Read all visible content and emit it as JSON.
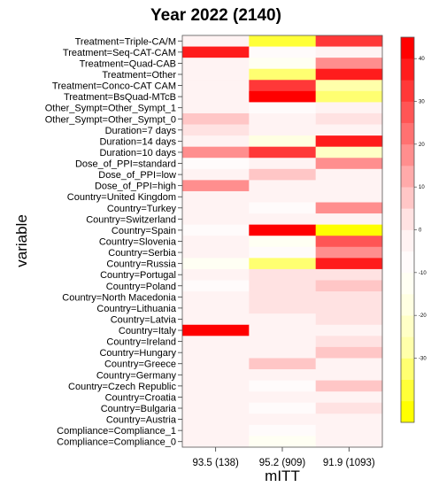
{
  "chart_data": {
    "type": "heatmap",
    "title": "Year 2022 (2140)",
    "xlabel": "mITT",
    "ylabel": "variable",
    "columns": [
      "93.5 (138)",
      "95.2 (909)",
      "91.9 (1093)"
    ],
    "rows": [
      "Treatment=Triple-CA/M",
      "Treatment=Seq-CAT-CAM",
      "Treatment=Quad-CAB",
      "Treatment=Other",
      "Treatment=Conco-CAT CAM",
      "Treatment=BsQuad-MTcB",
      "Other_Sympt=Other_Sympt_1",
      "Other_Sympt=Other_Sympt_0",
      "Duration=7 days",
      "Duration=14 days",
      "Duration=10 days",
      "Dose_of_PPI=standard",
      "Dose_of_PPI=low",
      "Dose_of_PPI=high",
      "Country=United Kingdom",
      "Country=Turkey",
      "Country=Switzerland",
      "Country=Spain",
      "Country=Slovenia",
      "Country=Serbia",
      "Country=Russia",
      "Country=Portugal",
      "Country=Poland",
      "Country=North Macedonia",
      "Country=Lithuania",
      "Country=Latvia",
      "Country=Italy",
      "Country=Ireland",
      "Country=Hungary",
      "Country=Greece",
      "Country=Germany",
      "Country=Czech Republic",
      "Country=Croatia",
      "Country=Bulgaria",
      "Country=Austria",
      "Compliance=Compliance_1",
      "Compliance=Compliance_0"
    ],
    "values": [
      [
        -3,
        -40,
        30
      ],
      [
        35,
        -8,
        -4
      ],
      [
        -3,
        -12,
        15
      ],
      [
        -3,
        -35,
        35
      ],
      [
        -3,
        30,
        -30
      ],
      [
        -3,
        40,
        -35
      ],
      [
        -3,
        -6,
        -2
      ],
      [
        5,
        -5,
        3
      ],
      [
        0,
        -3,
        -2
      ],
      [
        -5,
        -20,
        35
      ],
      [
        15,
        30,
        -25
      ],
      [
        -10,
        -4,
        15
      ],
      [
        -3,
        5,
        -3
      ],
      [
        15,
        -2,
        -3
      ],
      [
        -3,
        -3,
        -5
      ],
      [
        -5,
        -8,
        15
      ],
      [
        -3,
        -2,
        -3
      ],
      [
        -10,
        45,
        -45
      ],
      [
        -5,
        -15,
        25
      ],
      [
        -5,
        -10,
        15
      ],
      [
        -15,
        -35,
        35
      ],
      [
        -3,
        3,
        3
      ],
      [
        -8,
        3,
        5
      ],
      [
        -3,
        3,
        4
      ],
      [
        -3,
        3,
        4
      ],
      [
        -3,
        -3,
        4
      ],
      [
        40,
        -3,
        -3
      ],
      [
        -3,
        -3,
        4
      ],
      [
        -3,
        -3,
        5
      ],
      [
        -3,
        8,
        -4
      ],
      [
        -3,
        -5,
        -3
      ],
      [
        -3,
        -6,
        5
      ],
      [
        -3,
        -5,
        -3
      ],
      [
        -3,
        -8,
        3
      ],
      [
        -3,
        -3,
        -3
      ],
      [
        -3,
        -6,
        -3
      ],
      [
        -3,
        -15,
        -4
      ]
    ],
    "colorbar": {
      "min": -45,
      "max": 45,
      "step": 5,
      "ticks": [
        -30,
        -20,
        -10,
        0,
        10,
        20,
        30,
        40
      ],
      "colors_low_to_high": [
        "#FFFF00",
        "#FFFF38",
        "#FFFF71",
        "#FFFFAA",
        "#FFFFC6",
        "#FFFFE2",
        "#FFFFF3",
        "#FFFBFB",
        "#FFF3F3",
        "#FFE2E2",
        "#FFC6C6",
        "#FFAAAA",
        "#FF8E8E",
        "#FF7171",
        "#FF5555",
        "#FF3838",
        "#FF1C1C",
        "#FF0000"
      ]
    }
  }
}
